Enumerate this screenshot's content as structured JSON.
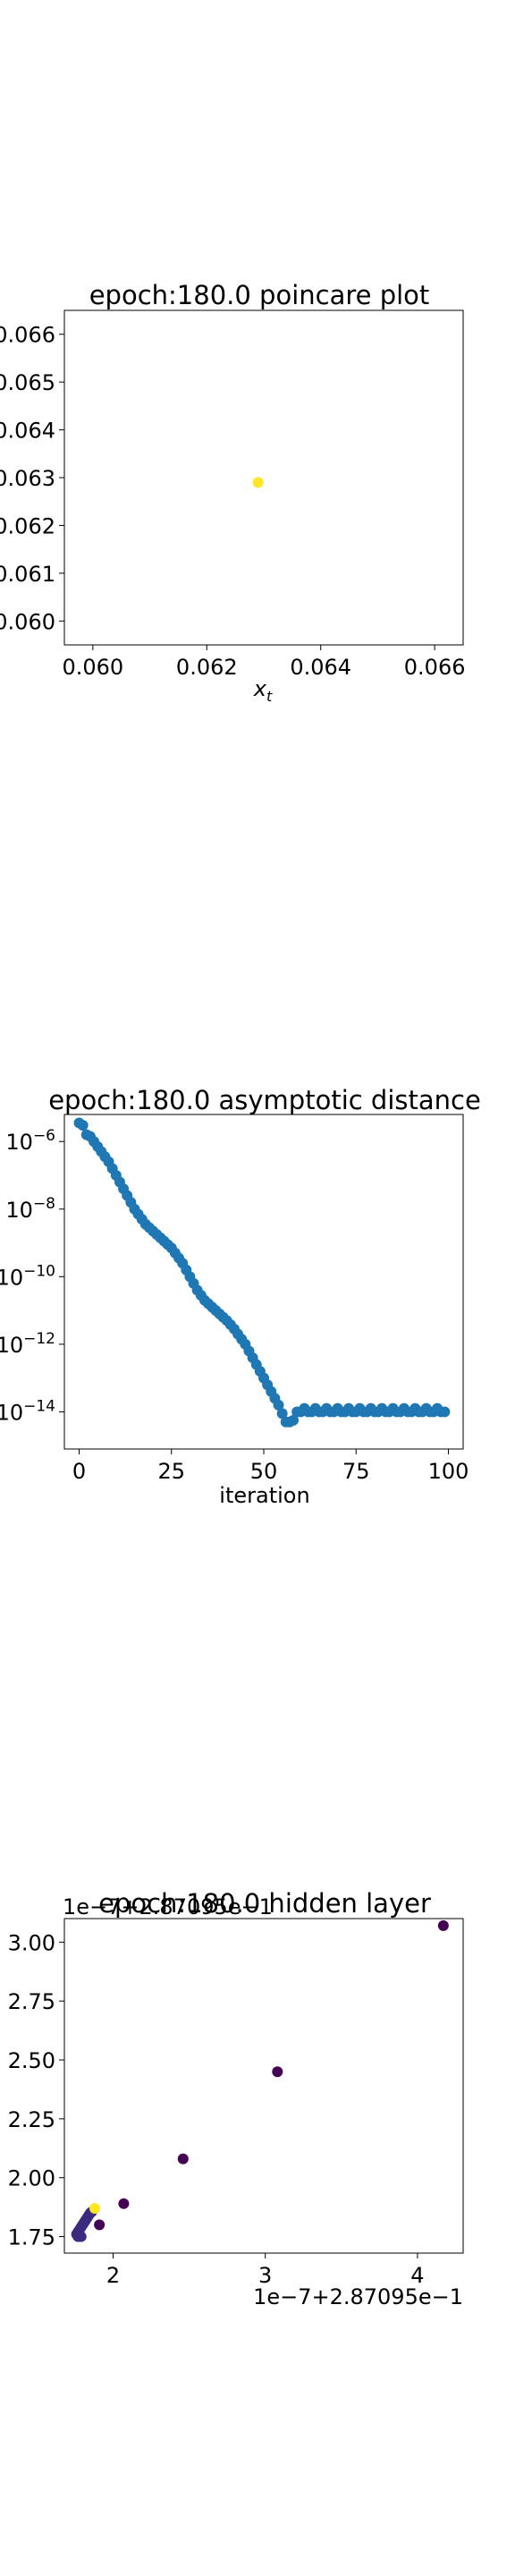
{
  "chart_data": [
    {
      "type": "scatter",
      "title": "epoch:180.0 poincare plot",
      "xlabel": "x_t",
      "ylabel": "",
      "xlim": [
        0.0595,
        0.0665
      ],
      "ylim": [
        0.0595,
        0.0665
      ],
      "xticks": [
        "0.060",
        "0.062",
        "0.064",
        "0.066"
      ],
      "yticks": [
        "0.060",
        "0.061",
        "0.062",
        "0.063",
        "0.064",
        "0.065",
        "0.066"
      ],
      "point_color": "#fde725",
      "points": [
        {
          "x": 0.0629,
          "y": 0.0629
        }
      ]
    },
    {
      "type": "scatter",
      "title": "epoch:180.0 asymptotic distance",
      "xlabel": "iteration",
      "ylabel": "",
      "y_scale": "log",
      "xlim": [
        -4,
        104
      ],
      "ylim_log10": [
        -15.1,
        -5.2
      ],
      "xticks": [
        "0",
        "25",
        "50",
        "75",
        "100"
      ],
      "yticks": [
        "10^-6",
        "10^-8",
        "10^-10",
        "10^-12",
        "10^-14"
      ],
      "point_color": "#1f77b4",
      "log10_y": [
        -5.45,
        -5.52,
        -5.8,
        -5.85,
        -6.0,
        -6.15,
        -6.3,
        -6.45,
        -6.6,
        -6.8,
        -7.0,
        -7.2,
        -7.4,
        -7.6,
        -7.8,
        -8.0,
        -8.15,
        -8.3,
        -8.45,
        -8.55,
        -8.65,
        -8.75,
        -8.85,
        -8.95,
        -9.05,
        -9.15,
        -9.3,
        -9.45,
        -9.6,
        -9.8,
        -10.0,
        -10.2,
        -10.4,
        -10.55,
        -10.7,
        -10.8,
        -10.9,
        -11.0,
        -11.1,
        -11.2,
        -11.3,
        -11.42,
        -11.55,
        -11.7,
        -11.85,
        -12.0,
        -12.2,
        -12.4,
        -12.6,
        -12.8,
        -13.0,
        -13.2,
        -13.4,
        -13.6,
        -13.8,
        -14.05,
        -14.3,
        -14.3,
        -14.25,
        -14.0,
        -14.0,
        -13.9,
        -14.0,
        -14.0,
        -13.9,
        -14.0,
        -14.0,
        -13.9,
        -14.0,
        -14.0,
        -13.9,
        -14.0,
        -14.0,
        -13.9,
        -14.0,
        -14.0,
        -13.9,
        -14.0,
        -14.0,
        -13.9,
        -14.0,
        -14.0,
        -13.9,
        -14.0,
        -14.0,
        -13.9,
        -14.0,
        -14.0,
        -13.9,
        -14.0,
        -14.0,
        -13.9,
        -14.0,
        -14.0,
        -13.9,
        -14.0,
        -14.0,
        -13.9,
        -14.0,
        -14.0
      ]
    },
    {
      "type": "scatter",
      "title": "epoch:180.0 hidden layer",
      "x_offset_label": "1e−7+2.87095e−1",
      "y_offset_label": "1e−7+2.87095e−1",
      "xlim": [
        1.68,
        4.3
      ],
      "ylim": [
        1.68,
        3.1
      ],
      "xticks": [
        "2",
        "3",
        "4"
      ],
      "yticks": [
        "1.75",
        "2.00",
        "2.25",
        "2.50",
        "2.75",
        "3.00"
      ],
      "colors": {
        "dark": "#440154",
        "mid": "#3b2a7e",
        "yellow": "#fde725"
      },
      "points": [
        {
          "x": 4.17,
          "y": 3.07,
          "c": "dark"
        },
        {
          "x": 3.08,
          "y": 2.45,
          "c": "dark"
        },
        {
          "x": 2.46,
          "y": 2.08,
          "c": "dark"
        },
        {
          "x": 2.07,
          "y": 1.89,
          "c": "dark"
        },
        {
          "x": 1.91,
          "y": 1.8,
          "c": "dark"
        },
        {
          "x": 1.76,
          "y": 1.76,
          "c": "mid"
        },
        {
          "x": 1.77,
          "y": 1.77,
          "c": "mid"
        },
        {
          "x": 1.78,
          "y": 1.78,
          "c": "mid"
        },
        {
          "x": 1.79,
          "y": 1.79,
          "c": "mid"
        },
        {
          "x": 1.8,
          "y": 1.8,
          "c": "mid"
        },
        {
          "x": 1.81,
          "y": 1.81,
          "c": "mid"
        },
        {
          "x": 1.82,
          "y": 1.82,
          "c": "mid"
        },
        {
          "x": 1.83,
          "y": 1.83,
          "c": "mid"
        },
        {
          "x": 1.84,
          "y": 1.84,
          "c": "mid"
        },
        {
          "x": 1.85,
          "y": 1.85,
          "c": "mid"
        },
        {
          "x": 1.86,
          "y": 1.855,
          "c": "mid"
        },
        {
          "x": 1.77,
          "y": 1.75,
          "c": "mid"
        },
        {
          "x": 1.79,
          "y": 1.75,
          "c": "mid"
        },
        {
          "x": 1.88,
          "y": 1.87,
          "c": "yellow"
        }
      ]
    }
  ]
}
